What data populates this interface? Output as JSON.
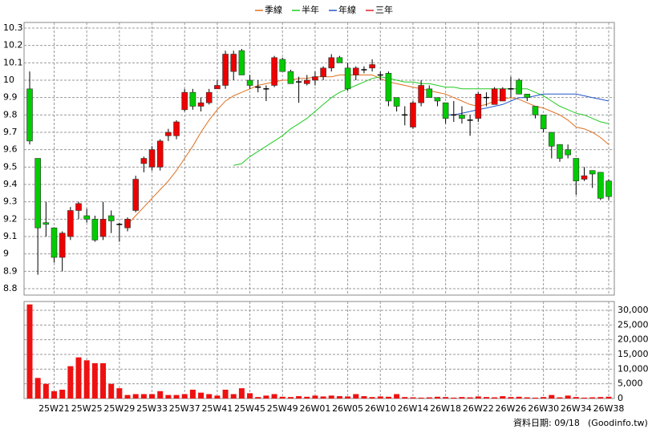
{
  "chart_data": {
    "type": "candlestick",
    "categories": [
      null,
      null,
      null,
      "25W21",
      null,
      null,
      null,
      "25W25",
      null,
      null,
      null,
      "25W29",
      null,
      null,
      null,
      "25W33",
      null,
      null,
      null,
      "25W37",
      null,
      null,
      null,
      "25W41",
      null,
      null,
      null,
      "25W45",
      null,
      null,
      null,
      "25W49",
      null,
      null,
      null,
      "26W01",
      null,
      null,
      null,
      "26W05",
      null,
      null,
      null,
      "26W10",
      null,
      null,
      null,
      "26W14",
      null,
      null,
      null,
      "26W18",
      null,
      null,
      null,
      "26W22",
      null,
      null,
      null,
      "26W26",
      null,
      null,
      null,
      "26W30",
      null,
      null,
      null,
      "26W34",
      null,
      null,
      null,
      "26W38"
    ],
    "open": [
      9.95,
      9.55,
      9.18,
      9.15,
      8.98,
      9.1,
      9.25,
      9.22,
      9.2,
      9.1,
      9.22,
      9.17,
      9.15,
      9.25,
      9.52,
      9.5,
      9.5,
      9.68,
      9.68,
      9.83,
      9.93,
      9.85,
      9.87,
      9.95,
      9.97,
      10.05,
      10.17,
      10.0,
      9.96,
      9.95,
      9.97,
      10.12,
      10.05,
      9.99,
      9.98,
      10.0,
      10.02,
      10.07,
      10.13,
      10.07,
      10.03,
      10.06,
      10.07,
      10.03,
      10.04,
      9.9,
      9.8,
      9.73,
      9.87,
      9.95,
      9.9,
      9.87,
      9.8,
      9.8,
      9.77,
      9.78,
      9.9,
      9.86,
      9.88,
      9.95,
      10.0,
      9.92,
      9.85,
      9.8,
      9.7,
      9.63,
      9.6,
      9.55,
      9.43,
      9.48,
      9.47,
      9.42
    ],
    "high": [
      10.05,
      9.55,
      9.3,
      9.15,
      9.13,
      9.27,
      9.3,
      9.26,
      9.22,
      9.3,
      9.25,
      9.18,
      9.21,
      9.45,
      9.56,
      9.62,
      9.66,
      9.72,
      9.77,
      9.95,
      9.95,
      9.9,
      9.95,
      10.0,
      10.17,
      10.17,
      10.18,
      10.03,
      10.0,
      9.97,
      10.14,
      10.13,
      10.06,
      10.02,
      10.03,
      10.05,
      10.08,
      10.15,
      10.14,
      10.1,
      10.08,
      10.08,
      10.12,
      10.05,
      10.05,
      9.9,
      9.85,
      9.88,
      10.0,
      9.97,
      9.9,
      9.87,
      9.88,
      9.85,
      9.8,
      9.93,
      9.93,
      9.96,
      9.96,
      10.02,
      10.01,
      9.92,
      9.85,
      9.8,
      9.7,
      9.63,
      9.63,
      9.55,
      9.5,
      9.48,
      9.47,
      9.43
    ],
    "low": [
      9.63,
      8.88,
      9.1,
      8.95,
      8.9,
      9.08,
      9.2,
      9.18,
      9.07,
      9.08,
      9.12,
      9.07,
      9.13,
      9.24,
      9.47,
      9.48,
      9.48,
      9.65,
      9.66,
      9.82,
      9.83,
      9.82,
      9.86,
      9.95,
      9.95,
      10.0,
      10.03,
      9.95,
      9.93,
      9.88,
      9.96,
      10.05,
      9.98,
      9.87,
      9.97,
      9.97,
      10.0,
      10.05,
      10.1,
      9.94,
      10.0,
      10.04,
      10.05,
      10.0,
      9.85,
      9.82,
      9.74,
      9.72,
      9.85,
      9.9,
      9.85,
      9.75,
      9.76,
      9.75,
      9.68,
      9.76,
      9.85,
      9.86,
      9.88,
      9.9,
      9.92,
      9.88,
      9.78,
      9.7,
      9.55,
      9.53,
      9.55,
      9.34,
      9.42,
      9.38,
      9.31,
      9.31
    ],
    "close": [
      9.65,
      9.15,
      9.17,
      8.98,
      9.12,
      9.25,
      9.29,
      9.2,
      9.08,
      9.2,
      9.19,
      9.17,
      9.2,
      9.43,
      9.55,
      9.6,
      9.65,
      9.7,
      9.76,
      9.93,
      9.85,
      9.87,
      9.93,
      9.97,
      10.15,
      10.15,
      10.03,
      9.97,
      9.96,
      9.95,
      10.13,
      10.05,
      9.98,
      9.99,
      10.0,
      10.02,
      10.07,
      10.13,
      10.1,
      9.95,
      10.07,
      10.06,
      10.09,
      10.03,
      9.88,
      9.85,
      9.8,
      9.87,
      9.97,
      9.9,
      9.88,
      9.78,
      9.8,
      9.78,
      9.77,
      9.92,
      9.9,
      9.95,
      9.95,
      9.95,
      9.92,
      9.9,
      9.8,
      9.72,
      9.62,
      9.55,
      9.57,
      9.42,
      9.45,
      9.46,
      9.32,
      9.33
    ],
    "up_color": "#ee0000",
    "down_color": "#00cc00",
    "volume": [
      32000,
      7000,
      5000,
      2500,
      3000,
      11000,
      14000,
      13000,
      12000,
      12000,
      5000,
      3500,
      1200,
      1500,
      1500,
      1500,
      2500,
      1200,
      1200,
      1500,
      3000,
      2000,
      1500,
      1000,
      3000,
      1500,
      3500,
      1800,
      500,
      1000,
      1500,
      600,
      500,
      800,
      600,
      1000,
      700,
      1000,
      800,
      700,
      1500,
      800,
      500,
      700,
      600,
      1500,
      500,
      400,
      300,
      400,
      600,
      500,
      300,
      500,
      400,
      700,
      500,
      400,
      800,
      500,
      600,
      400,
      300,
      500,
      1200,
      400,
      1000,
      500,
      300,
      400,
      500,
      600
    ],
    "volume_color": "#ee1111",
    "series": [
      {
        "name": "季線",
        "color": "#e07020",
        "values": [
          null,
          null,
          null,
          null,
          null,
          null,
          null,
          null,
          null,
          null,
          null,
          null,
          9.17,
          9.22,
          9.27,
          9.32,
          9.37,
          9.42,
          9.48,
          9.55,
          9.62,
          9.7,
          9.77,
          9.83,
          9.88,
          9.91,
          9.93,
          9.95,
          9.97,
          9.98,
          9.99,
          10.0,
          10.0,
          10.01,
          10.01,
          10.02,
          10.02,
          10.02,
          10.03,
          10.03,
          10.03,
          10.03,
          10.03,
          10.01,
          9.99,
          9.98,
          9.97,
          9.96,
          9.95,
          9.94,
          9.93,
          9.92,
          9.9,
          9.88,
          9.86,
          9.85,
          9.86,
          9.88,
          9.89,
          9.9,
          9.89,
          9.87,
          9.85,
          9.84,
          9.82,
          9.8,
          9.77,
          9.73,
          9.72,
          9.7,
          9.67,
          9.63
        ]
      },
      {
        "name": "半年",
        "color": "#22cc22",
        "values": [
          null,
          null,
          null,
          null,
          null,
          null,
          null,
          null,
          null,
          null,
          null,
          null,
          null,
          null,
          null,
          null,
          null,
          null,
          null,
          null,
          null,
          null,
          null,
          null,
          null,
          9.51,
          9.52,
          9.56,
          9.59,
          9.62,
          9.65,
          9.68,
          9.72,
          9.75,
          9.78,
          9.82,
          9.86,
          9.9,
          9.93,
          9.95,
          9.97,
          9.99,
          10.01,
          10.02,
          10.01,
          10.0,
          9.99,
          9.99,
          9.98,
          9.98,
          9.97,
          9.96,
          9.96,
          9.95,
          9.95,
          9.95,
          9.95,
          9.95,
          9.95,
          9.95,
          9.95,
          9.95,
          9.93,
          9.91,
          9.88,
          9.85,
          9.83,
          9.81,
          9.8,
          9.78,
          9.76,
          9.75
        ]
      },
      {
        "name": "年線",
        "color": "#2255cc",
        "values": [
          null,
          null,
          null,
          null,
          null,
          null,
          null,
          null,
          null,
          null,
          null,
          null,
          null,
          null,
          null,
          null,
          null,
          null,
          null,
          null,
          null,
          null,
          null,
          null,
          null,
          null,
          null,
          null,
          null,
          null,
          null,
          null,
          null,
          null,
          null,
          null,
          null,
          null,
          null,
          null,
          null,
          null,
          null,
          null,
          null,
          null,
          null,
          null,
          null,
          null,
          null,
          9.8,
          9.8,
          9.81,
          9.82,
          9.83,
          9.84,
          9.85,
          9.86,
          9.88,
          9.9,
          9.9,
          9.91,
          9.92,
          9.92,
          9.92,
          9.92,
          9.92,
          9.91,
          9.9,
          9.89,
          9.88
        ]
      },
      {
        "name": "三年",
        "color": "#dd2222",
        "values": [
          null,
          null,
          null,
          null,
          null,
          null,
          null,
          null,
          null,
          null,
          null,
          null,
          null,
          null,
          null,
          null,
          null,
          null,
          null,
          null,
          null,
          null,
          null,
          null,
          null,
          null,
          null,
          null,
          null,
          null,
          null,
          null,
          null,
          null,
          null,
          null,
          null,
          null,
          null,
          null,
          null,
          null,
          null,
          null,
          null,
          null,
          null,
          null,
          null,
          null,
          null,
          null,
          null,
          null,
          null,
          null,
          null,
          null,
          null,
          null,
          null,
          null,
          null,
          null,
          null,
          null,
          null,
          null,
          null,
          null,
          null,
          null
        ]
      }
    ],
    "ylim": [
      8.8,
      10.3
    ],
    "yticks": [
      8.8,
      8.9,
      9,
      9.1,
      9.2,
      9.3,
      9.4,
      9.5,
      9.6,
      9.7,
      9.8,
      9.9,
      10,
      10.1,
      10.2,
      10.3
    ],
    "y2lim": [
      0,
      30000
    ],
    "y2ticks": [
      0,
      {
        "value": 5000,
        "label": "5,000"
      },
      {
        "value": 10000,
        "label": "10,000"
      },
      {
        "value": 15000,
        "label": "15,000"
      },
      {
        "value": 20000,
        "label": "20,000"
      },
      {
        "value": 25000,
        "label": "25,000"
      },
      {
        "value": 30000,
        "label": "30,000"
      }
    ],
    "grid": true,
    "footer_date": "資料日期: 09/18",
    "footer_source": "(Goodinfo.tw)"
  }
}
